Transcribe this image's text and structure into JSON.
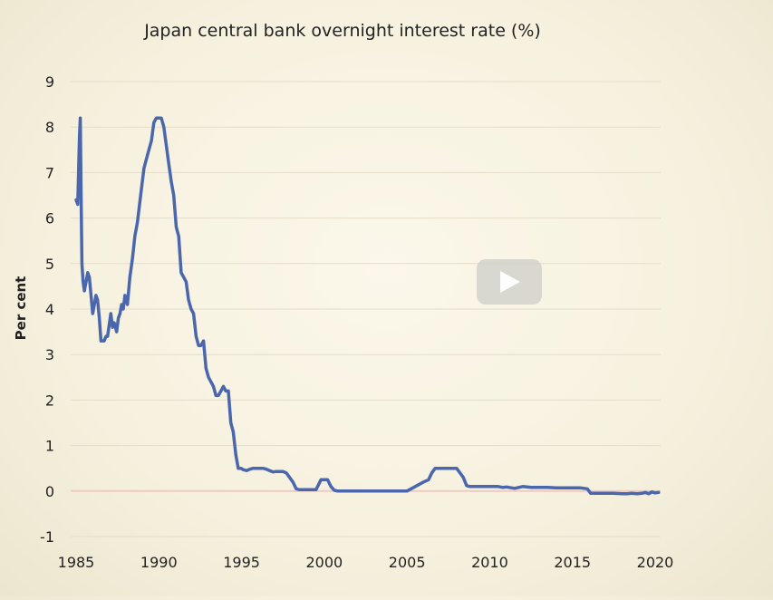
{
  "colors": {
    "series": "#4a66ad",
    "grid": "#e4dccb",
    "zero_line": "#f1c9c2"
  },
  "play_icon": "play-icon",
  "chart_data": {
    "type": "line",
    "title": "Japan central bank overnight interest rate (%)",
    "xlabel": "",
    "ylabel": "Per cent",
    "xlim": [
      1985,
      2020
    ],
    "ylim": [
      -1,
      9
    ],
    "xticks": [
      "1985",
      "1990",
      "1995",
      "2000",
      "2005",
      "2010",
      "2015",
      "2020"
    ],
    "yticks": [
      "9",
      "8",
      "7",
      "6",
      "5",
      "4",
      "3",
      "2",
      "1",
      "0",
      "-1"
    ],
    "grid": true,
    "series": [
      {
        "x": [
          1985.0,
          1985.1,
          1985.2,
          1985.25,
          1985.3,
          1985.35,
          1985.42,
          1985.5,
          1985.55,
          1985.6,
          1985.7,
          1985.8,
          1986.0,
          1986.2,
          1986.3,
          1986.4,
          1986.5,
          1986.6,
          1986.7,
          1986.8,
          1986.9,
          1987.1,
          1987.2,
          1987.3,
          1987.45,
          1987.55,
          1987.65,
          1987.75,
          1987.85,
          1987.95,
          1988.1,
          1988.25,
          1988.4,
          1988.55,
          1988.7,
          1988.8,
          1988.9,
          1989.1,
          1989.25,
          1989.4,
          1989.55,
          1989.7,
          1989.85,
          1990.0,
          1990.15,
          1990.3,
          1990.45,
          1990.6,
          1990.75,
          1990.9,
          1991.05,
          1991.2,
          1991.35,
          1991.5,
          1991.65,
          1991.8,
          1991.95,
          1992.1,
          1992.25,
          1992.4,
          1992.55,
          1992.7,
          1992.85,
          1993.0,
          1993.15,
          1993.3,
          1993.45,
          1993.6,
          1993.75,
          1993.9,
          1994.05,
          1994.2,
          1994.35,
          1994.5,
          1994.65,
          1994.8,
          1994.95,
          1995.1,
          1995.3,
          1995.5,
          1995.7,
          1995.9,
          1996.1,
          1996.3,
          1996.5,
          1996.7,
          1996.9,
          1997.1,
          1997.3,
          1997.5,
          1997.7,
          1997.9,
          1998.1,
          1998.3,
          1998.5,
          1998.7,
          1998.85,
          1999.0,
          1999.2,
          1999.5,
          1999.8,
          2000.0,
          2000.2,
          2000.4,
          2000.6,
          2000.8,
          2001.0,
          2001.2,
          2001.4,
          2002.0,
          2003.0,
          2004.0,
          2005.0,
          2006.0,
          2006.3,
          2006.5,
          2006.7,
          2006.8,
          2007.0,
          2007.5,
          2008.0,
          2008.4,
          2008.6,
          2008.8,
          2009.0,
          2010.0,
          2010.5,
          2010.8,
          2011.0,
          2011.5,
          2012.0,
          2012.5,
          2013.0,
          2013.5,
          2014.0,
          2014.5,
          2015.0,
          2015.5,
          2015.9,
          2016.1,
          2016.5,
          2017.0,
          2017.5,
          2018.0,
          2018.3,
          2018.6,
          2018.9,
          2019.2,
          2019.4,
          2019.6,
          2019.8,
          2020.0,
          2020.2
        ],
        "y": [
          6.4,
          6.3,
          7.8,
          8.2,
          6.5,
          5.0,
          4.6,
          4.4,
          4.5,
          4.6,
          4.8,
          4.7,
          3.9,
          4.3,
          4.2,
          3.8,
          3.3,
          3.3,
          3.3,
          3.4,
          3.4,
          3.9,
          3.6,
          3.7,
          3.5,
          3.8,
          3.9,
          4.1,
          4.0,
          4.3,
          4.1,
          4.7,
          5.1,
          5.6,
          5.9,
          6.2,
          6.5,
          7.1,
          7.3,
          7.5,
          7.7,
          8.1,
          8.2,
          8.2,
          8.2,
          8.0,
          7.6,
          7.2,
          6.8,
          6.5,
          5.8,
          5.6,
          4.8,
          4.7,
          4.6,
          4.2,
          4.0,
          3.9,
          3.4,
          3.2,
          3.2,
          3.3,
          2.7,
          2.5,
          2.4,
          2.3,
          2.1,
          2.1,
          2.2,
          2.3,
          2.2,
          2.2,
          1.5,
          1.3,
          0.8,
          0.5,
          0.5,
          0.47,
          0.45,
          0.48,
          0.5,
          0.5,
          0.5,
          0.5,
          0.48,
          0.45,
          0.42,
          0.43,
          0.43,
          0.43,
          0.4,
          0.3,
          0.2,
          0.05,
          0.03,
          0.03,
          0.03,
          0.03,
          0.03,
          0.03,
          0.25,
          0.25,
          0.25,
          0.1,
          0.02,
          0.0,
          0.0,
          0.0,
          0.0,
          0.0,
          0.0,
          0.0,
          0.0,
          0.2,
          0.25,
          0.4,
          0.5,
          0.5,
          0.5,
          0.5,
          0.5,
          0.3,
          0.12,
          0.1,
          0.1,
          0.1,
          0.1,
          0.08,
          0.09,
          0.06,
          0.1,
          0.08,
          0.08,
          0.08,
          0.07,
          0.07,
          0.07,
          0.07,
          0.05,
          -0.05,
          -0.05,
          -0.05,
          -0.05,
          -0.06,
          -0.06,
          -0.05,
          -0.06,
          -0.05,
          -0.03,
          -0.06,
          -0.02,
          -0.04,
          -0.03
        ]
      }
    ]
  }
}
